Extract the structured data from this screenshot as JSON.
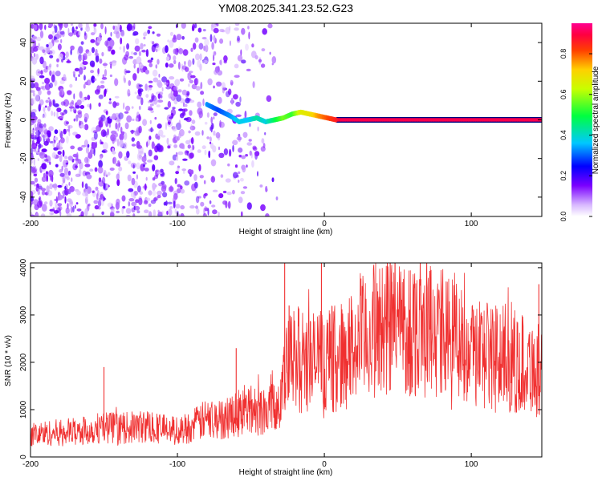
{
  "title": "YM08.2025.341.23.52.G23",
  "colors": {
    "snr_line": "#f03030",
    "ridge": "#ff2a1a",
    "speckle": "#7a00ff",
    "axis": "#000000"
  },
  "chart_data": [
    {
      "type": "heatmap",
      "name": "spectrogram",
      "xlabel": "Height of straight line (km)",
      "ylabel": "Frequency (Hz)",
      "xlim": [
        -200,
        148
      ],
      "ylim": [
        -50,
        50
      ],
      "xticks": [
        -200,
        -100,
        0,
        100
      ],
      "yticks": [
        -40,
        -20,
        0,
        20,
        40
      ],
      "colorbar": {
        "label": "Normalized spectral amplitude",
        "range": [
          0,
          0.95
        ],
        "ticks": [
          0.0,
          0.2,
          0.4,
          0.6,
          0.8
        ],
        "tick_labels": [
          "0.0",
          "0.2",
          "0.4",
          "0.6",
          "0.8"
        ]
      },
      "ridge": {
        "description": "dominant frequency track",
        "x": [
          -80,
          -72,
          -64,
          -58,
          -52,
          -46,
          -40,
          -34,
          -28,
          -22,
          -16,
          -10,
          -4,
          2,
          8,
          12,
          148
        ],
        "y": [
          8,
          5,
          2,
          -1,
          0,
          1,
          -1,
          0,
          1,
          3,
          4,
          3,
          2,
          1,
          0,
          0,
          0
        ],
        "amplitude": [
          0.35,
          0.3,
          0.35,
          0.4,
          0.38,
          0.45,
          0.4,
          0.5,
          0.6,
          0.55,
          0.7,
          0.72,
          0.8,
          0.85,
          0.9,
          0.95,
          0.95
        ]
      }
    },
    {
      "type": "line",
      "name": "snr",
      "xlabel": "Height of straight line (km)",
      "ylabel": "SNR (10 * v/v)",
      "xlim": [
        -200,
        148
      ],
      "ylim": [
        0,
        4100
      ],
      "xticks": [
        -200,
        -100,
        0,
        100
      ],
      "yticks": [
        0,
        1000,
        2000,
        3000,
        4000
      ],
      "series": [
        {
          "name": "SNR",
          "x": [
            -200,
            -180,
            -160,
            -150,
            -140,
            -120,
            -100,
            -90,
            -80,
            -70,
            -60,
            -50,
            -40,
            -35,
            -30,
            -25,
            -20,
            -10,
            0,
            10,
            20,
            30,
            40,
            50,
            60,
            70,
            80,
            90,
            100,
            110,
            120,
            130,
            140,
            148
          ],
          "y": [
            480,
            520,
            560,
            650,
            600,
            650,
            550,
            650,
            800,
            780,
            950,
            1000,
            1000,
            1200,
            1200,
            1900,
            2100,
            2000,
            2050,
            2100,
            2300,
            2600,
            2750,
            2800,
            2750,
            2700,
            2600,
            2450,
            2300,
            2200,
            2100,
            2000,
            1950,
            1800
          ],
          "peaks": [
            {
              "x": -150,
              "y": 1900
            },
            {
              "x": -60,
              "y": 2300
            },
            {
              "x": -27,
              "y": 4100
            },
            {
              "x": -24,
              "y": 3200
            },
            {
              "x": -2,
              "y": 4100
            },
            {
              "x": 46,
              "y": 3700
            },
            {
              "x": 146,
              "y": 3650
            }
          ]
        }
      ]
    }
  ]
}
